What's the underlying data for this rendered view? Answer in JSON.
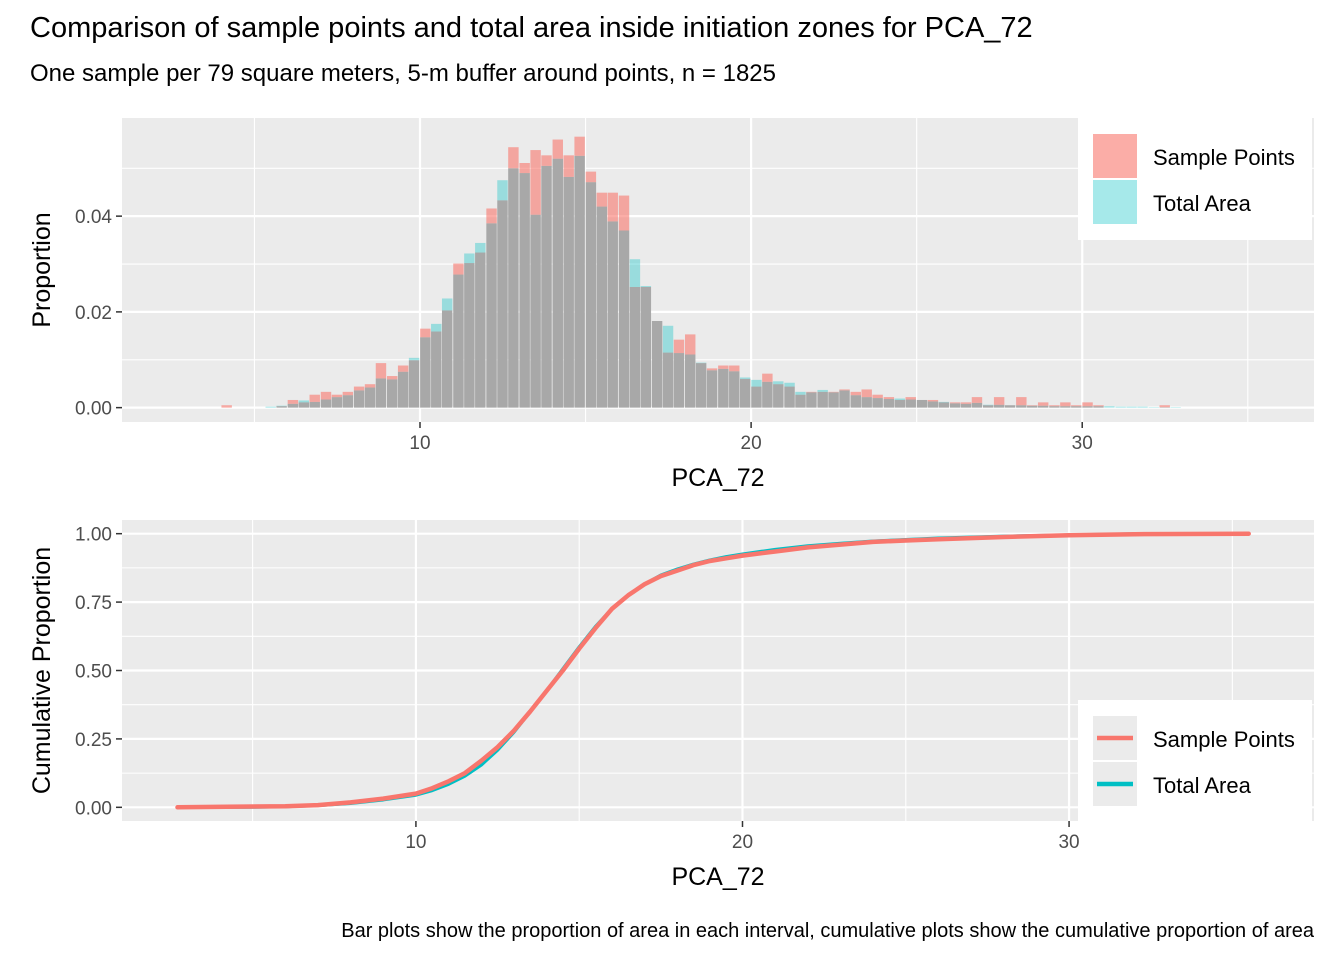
{
  "title": "Comparison of sample points and total area inside initiation zones for PCA_72",
  "subtitle": "One sample per 79 square meters, 5-m buffer around points, n = 1825",
  "caption": "Bar plots show the proportion of area in each interval, cumulative plots show the cumulative proportion of area",
  "colors": {
    "sample_points": "#F8766D",
    "total_area": "#00BFC4",
    "panel_bg": "#EBEBEB",
    "overlap": "#A8A8A8"
  },
  "chart_data": [
    {
      "type": "bar",
      "xlabel": "PCA_72",
      "ylabel": "Proportion",
      "xlim": [
        1,
        37
      ],
      "ylim": [
        -0.003,
        0.0605
      ],
      "x_ticks": [
        10,
        20,
        30
      ],
      "x_tick_labels": [
        "10",
        "20",
        "30"
      ],
      "y_ticks": [
        0,
        0.02,
        0.04
      ],
      "y_tick_labels": [
        "0.00",
        "0.02",
        "0.04"
      ],
      "grid": true,
      "legend_position": "top-right",
      "bin_width": 0.333,
      "series": [
        {
          "name": "Sample Points",
          "x": [
            4.17,
            5.83,
            6.17,
            6.5,
            6.83,
            7.17,
            7.5,
            7.83,
            8.17,
            8.5,
            8.83,
            9.17,
            9.5,
            9.83,
            10.17,
            10.5,
            10.83,
            11.17,
            11.5,
            11.83,
            12.17,
            12.5,
            12.83,
            13.17,
            13.5,
            13.83,
            14.17,
            14.5,
            14.83,
            15.17,
            15.5,
            15.83,
            16.17,
            16.5,
            16.83,
            17.17,
            17.5,
            17.83,
            18.17,
            18.5,
            18.83,
            19.17,
            19.5,
            19.83,
            20.17,
            20.5,
            20.83,
            21.17,
            21.5,
            21.83,
            22.17,
            22.5,
            22.83,
            23.17,
            23.5,
            23.83,
            24.17,
            24.5,
            24.83,
            25.17,
            25.5,
            25.83,
            26.17,
            26.5,
            26.83,
            27.17,
            27.5,
            27.83,
            28.17,
            28.5,
            28.83,
            29.17,
            29.5,
            29.83,
            30.17,
            30.5,
            32.5
          ],
          "values": [
            0.0005,
            0.0003,
            0.0016,
            0.0011,
            0.0027,
            0.0033,
            0.0027,
            0.0033,
            0.0044,
            0.0049,
            0.0093,
            0.0066,
            0.0088,
            0.0099,
            0.0165,
            0.0159,
            0.0203,
            0.0301,
            0.0302,
            0.0324,
            0.0416,
            0.0433,
            0.0544,
            0.0511,
            0.0538,
            0.0527,
            0.056,
            0.0527,
            0.0566,
            0.0493,
            0.0449,
            0.0449,
            0.0443,
            0.0252,
            0.0252,
            0.0181,
            0.0115,
            0.0142,
            0.0153,
            0.0093,
            0.0082,
            0.0088,
            0.0088,
            0.006,
            0.0044,
            0.0071,
            0.0049,
            0.0044,
            0.0027,
            0.0033,
            0.0033,
            0.0033,
            0.0038,
            0.0033,
            0.0038,
            0.0027,
            0.0022,
            0.0016,
            0.0022,
            0.0016,
            0.0016,
            0.0011,
            0.0011,
            0.0011,
            0.0022,
            0.0005,
            0.0022,
            0.0005,
            0.0022,
            0.0005,
            0.0011,
            0.0005,
            0.0011,
            0.0005,
            0.0011,
            0.0005,
            0.0005
          ]
        },
        {
          "name": "Total Area",
          "x": [
            5.5,
            5.83,
            6.17,
            6.5,
            6.83,
            7.17,
            7.5,
            7.83,
            8.17,
            8.5,
            8.83,
            9.17,
            9.5,
            9.83,
            10.17,
            10.5,
            10.83,
            11.17,
            11.5,
            11.83,
            12.17,
            12.5,
            12.83,
            13.17,
            13.5,
            13.83,
            14.17,
            14.5,
            14.83,
            15.17,
            15.5,
            15.83,
            16.17,
            16.5,
            16.83,
            17.17,
            17.5,
            17.83,
            18.17,
            18.5,
            18.83,
            19.17,
            19.5,
            19.83,
            20.17,
            20.5,
            20.83,
            21.17,
            21.5,
            21.83,
            22.17,
            22.5,
            22.83,
            23.17,
            23.5,
            23.83,
            24.17,
            24.5,
            24.83,
            25.17,
            25.5,
            25.83,
            26.17,
            26.5,
            26.83,
            27.17,
            27.5,
            27.83,
            28.17,
            28.5,
            28.83,
            29.17,
            29.5,
            29.83,
            30.17,
            30.5,
            30.83,
            31.17,
            31.5,
            31.83,
            32.17,
            32.5,
            32.83
          ],
          "values": [
            0.0002,
            0.0004,
            0.0008,
            0.0015,
            0.0012,
            0.0017,
            0.0022,
            0.0026,
            0.0036,
            0.0042,
            0.0061,
            0.0059,
            0.0075,
            0.0104,
            0.0147,
            0.0175,
            0.0228,
            0.0278,
            0.0322,
            0.0344,
            0.0385,
            0.0475,
            0.05,
            0.049,
            0.0403,
            0.0505,
            0.052,
            0.0482,
            0.0526,
            0.0471,
            0.042,
            0.0389,
            0.037,
            0.031,
            0.0254,
            0.0181,
            0.0171,
            0.0114,
            0.0111,
            0.0094,
            0.0078,
            0.0081,
            0.0076,
            0.0063,
            0.0058,
            0.0054,
            0.0055,
            0.0052,
            0.0033,
            0.0032,
            0.0037,
            0.0032,
            0.0036,
            0.0026,
            0.0022,
            0.002,
            0.0018,
            0.0019,
            0.0017,
            0.0016,
            0.0013,
            0.0012,
            0.0009,
            0.0008,
            0.001,
            0.0006,
            0.0006,
            0.0005,
            0.0005,
            0.0004,
            0.0004,
            0.0003,
            0.0003,
            0.0003,
            0.0003,
            0.0003,
            0.0003,
            0.0002,
            0.0002,
            0.0002,
            0.0001,
            0.0001,
            0.0001
          ]
        }
      ]
    },
    {
      "type": "line",
      "xlabel": "PCA_72",
      "ylabel": "Cumulative Proportion",
      "xlim": [
        1,
        37.5
      ],
      "ylim": [
        -0.05,
        1.05
      ],
      "x_ticks": [
        10,
        20,
        30
      ],
      "x_tick_labels": [
        "10",
        "20",
        "30"
      ],
      "y_ticks": [
        0,
        0.25,
        0.5,
        0.75,
        1.0
      ],
      "y_tick_labels": [
        "0.00",
        "0.25",
        "0.50",
        "0.75",
        "1.00"
      ],
      "grid": true,
      "legend_position": "bottom-right",
      "series": [
        {
          "name": "Sample Points",
          "x": [
            2.7,
            4.2,
            6.0,
            7.0,
            8.0,
            9.0,
            10.0,
            10.5,
            11.0,
            11.5,
            12.0,
            12.5,
            13.0,
            13.5,
            14.0,
            14.5,
            15.0,
            15.5,
            16.0,
            16.5,
            17.0,
            17.5,
            18.0,
            18.5,
            19.0,
            19.5,
            20.0,
            21.0,
            22.0,
            23.0,
            24.0,
            25.0,
            26.0,
            28.0,
            30.0,
            32.0,
            35.5
          ],
          "values": [
            0.0,
            0.002,
            0.004,
            0.008,
            0.018,
            0.032,
            0.05,
            0.07,
            0.095,
            0.125,
            0.17,
            0.22,
            0.28,
            0.35,
            0.425,
            0.5,
            0.58,
            0.655,
            0.725,
            0.775,
            0.815,
            0.845,
            0.865,
            0.885,
            0.9,
            0.91,
            0.92,
            0.935,
            0.95,
            0.96,
            0.97,
            0.975,
            0.98,
            0.988,
            0.994,
            0.998,
            1.0
          ]
        },
        {
          "name": "Total Area",
          "x": [
            2.7,
            5.0,
            6.0,
            7.0,
            8.0,
            9.0,
            10.0,
            10.5,
            11.0,
            11.5,
            12.0,
            12.5,
            13.0,
            13.5,
            14.0,
            14.5,
            15.0,
            15.5,
            16.0,
            16.5,
            17.0,
            17.5,
            18.0,
            18.5,
            19.0,
            19.5,
            20.0,
            21.0,
            22.0,
            23.0,
            24.0,
            25.0,
            26.0,
            28.0,
            30.0,
            32.0
          ],
          "values": [
            0.0,
            0.001,
            0.003,
            0.007,
            0.015,
            0.028,
            0.045,
            0.062,
            0.085,
            0.115,
            0.155,
            0.21,
            0.275,
            0.35,
            0.425,
            0.505,
            0.585,
            0.66,
            0.725,
            0.775,
            0.815,
            0.848,
            0.87,
            0.888,
            0.903,
            0.915,
            0.925,
            0.942,
            0.955,
            0.964,
            0.972,
            0.978,
            0.983,
            0.99,
            0.995,
            0.999
          ]
        }
      ]
    }
  ]
}
